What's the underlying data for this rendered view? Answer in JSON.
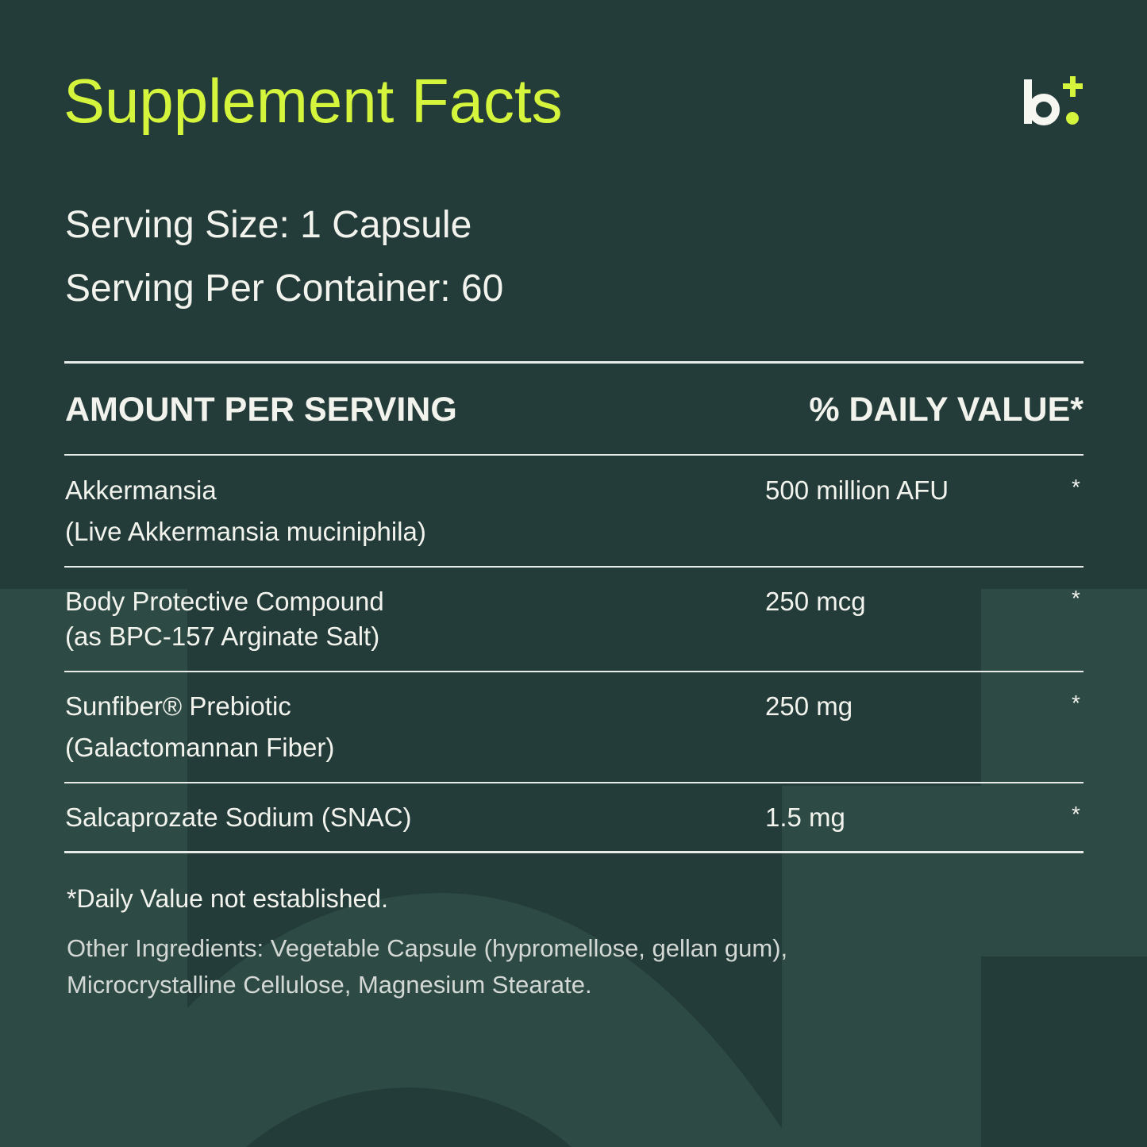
{
  "title": "Supplement Facts",
  "logo": {
    "text": "b+",
    "colors": {
      "letter": "#f7f7f2",
      "accent": "#d4f53c"
    }
  },
  "serving_size": "Serving Size: 1 Capsule",
  "servings_per_container": "Serving Per Container: 60",
  "table": {
    "header_left": "AMOUNT PER SERVING",
    "header_right": "% DAILY VALUE*",
    "rows": [
      {
        "name": "Akkermansia",
        "sub": "(Live Akkermansia muciniphila)",
        "amount": "500 million AFU",
        "dv": "*"
      },
      {
        "name": "Body Protective Compound",
        "sub": "(as BPC-157 Arginate Salt)",
        "amount": "250 mcg",
        "dv": "*"
      },
      {
        "name": "Sunfiber® Prebiotic",
        "sub": "(Galactomannan Fiber)",
        "amount": "250 mg",
        "dv": "*"
      },
      {
        "name": "Salcaprozate Sodium (SNAC)",
        "sub": "",
        "amount": "1.5 mg",
        "dv": "*"
      }
    ]
  },
  "footnote": "*Daily Value not established.",
  "other_ingredients_line1": "Other Ingredients: Vegetable Capsule (hypromellose, gellan gum),",
  "other_ingredients_line2": "Microcrystalline Cellulose, Magnesium Stearate.",
  "colors": {
    "background": "#233c39",
    "background_light": "#2e4a45",
    "title": "#d4f53c",
    "text": "#f3f3ee"
  }
}
